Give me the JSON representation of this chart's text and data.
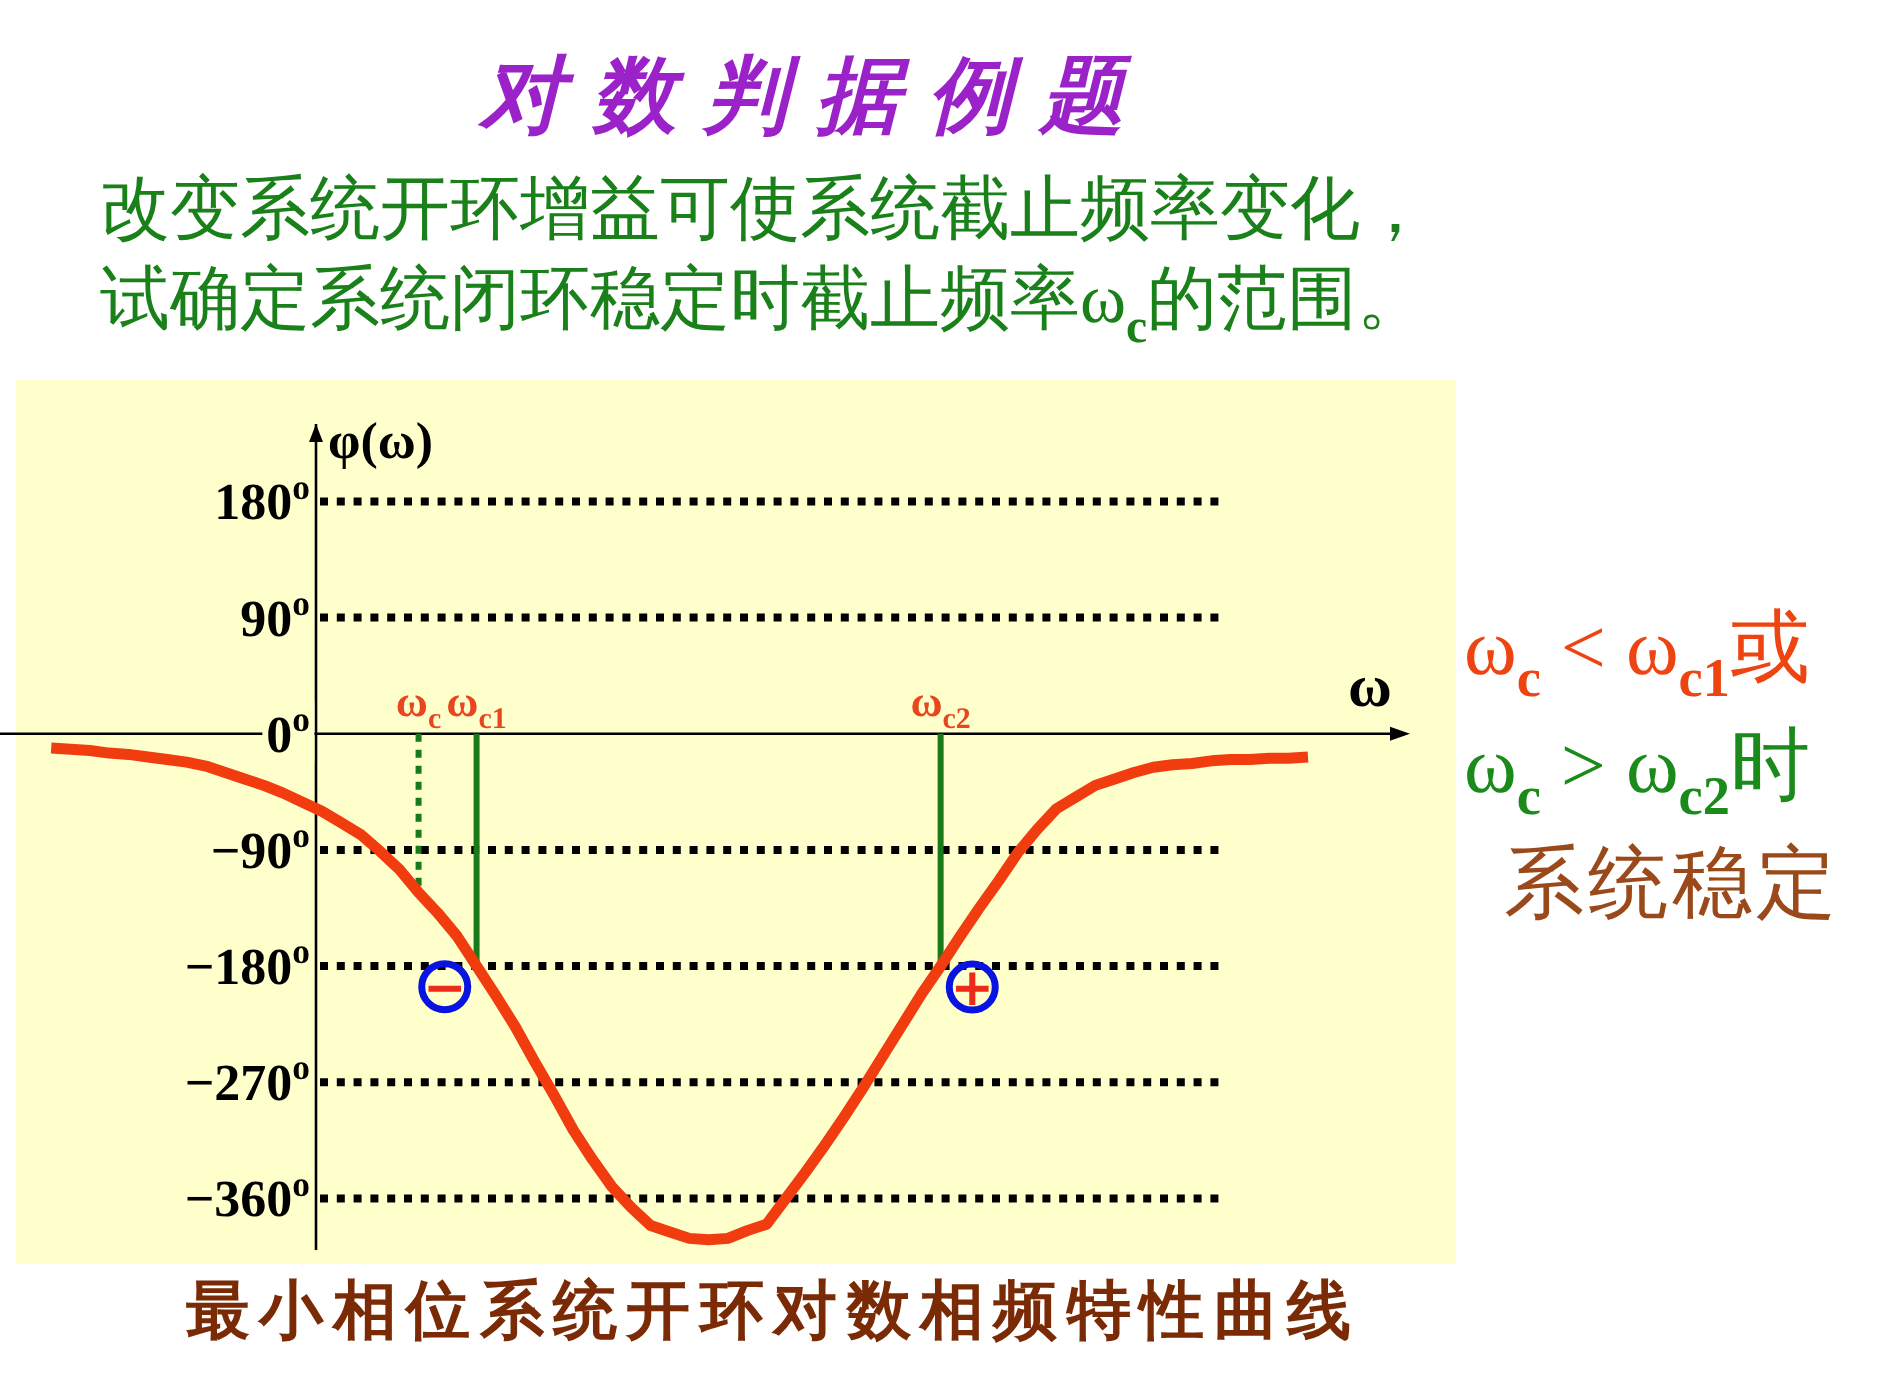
{
  "chart_data": {
    "type": "line",
    "title": "对数判据例题",
    "subtitle": "改变系统开环增益可使系统截止频率变化，试确定系统闭环稳定时截止频率ω$_{c}$的范围。",
    "xlabel": "ω",
    "ylabel": "φ(ω)",
    "categories": [
      null,
      null,
      null,
      null,
      null,
      null,
      null,
      null,
      null,
      null,
      null,
      null,
      null,
      null,
      null,
      null,
      null,
      null,
      null,
      "ω$_{c}$",
      null,
      null,
      "ω$_{c1}$",
      null,
      null,
      null,
      null,
      null,
      null,
      null,
      null,
      null,
      null,
      null,
      null,
      null,
      null,
      null,
      null,
      null,
      null,
      null,
      null,
      null,
      null,
      null,
      "ω$_{c2}$",
      null,
      null,
      null,
      null,
      null,
      null,
      null,
      null,
      null,
      null,
      null,
      null,
      null,
      null,
      null,
      null,
      null,
      null,
      null
    ],
    "series": [
      {
        "color": "#f03c0f",
        "values": [
          -11,
          -12,
          -13,
          -15,
          -16,
          -18,
          -20,
          -22,
          -25,
          -30,
          -35,
          -40,
          -46,
          -53,
          -60,
          -69,
          -78,
          -91,
          -105,
          -123,
          -139,
          -157,
          -180,
          -203,
          -227,
          -254,
          -280,
          -307,
          -330,
          -351,
          -367,
          -381,
          -386,
          -391,
          -392,
          -391,
          -385,
          -380,
          -360,
          -340,
          -319,
          -297,
          -274,
          -250,
          -226,
          -202,
          -180,
          -157,
          -135,
          -114,
          -92,
          -74,
          -58,
          -49,
          -40,
          -35,
          -30,
          -26,
          -24,
          -23,
          -21,
          -20,
          -20,
          -19,
          -19,
          -18
        ]
      }
    ],
    "ylim": [
      -400,
      240
    ],
    "yticks": [
      {
        "value": 180,
        "label": "180$^{o}$"
      },
      {
        "value": 90,
        "label": "90$^{o}$"
      },
      {
        "value": 0,
        "label": "0$^{o}$"
      },
      {
        "value": -90,
        "label": "−90$^{o}$"
      },
      {
        "value": -180,
        "label": "−180$^{o}$"
      },
      {
        "value": -270,
        "label": "−270$^{o}$"
      },
      {
        "value": -360,
        "label": "−360$^{o}$"
      }
    ],
    "grid": "y",
    "line_style": "solid",
    "ref_lines": [
      {
        "axis": "x",
        "value": "ω$_{c}$",
        "color": "#1a7a1a",
        "line_style": "dotted"
      },
      {
        "axis": "x",
        "value": "ω$_{c1}$",
        "color": "#1a7a1a",
        "line_style": "solid"
      },
      {
        "axis": "x",
        "value": "ω$_{c2}$",
        "color": "#1a7a1a",
        "line_style": "solid"
      }
    ],
    "annotations": [
      "ω$_{c}$ < ω$_{c1}$或",
      "ω$_{c}$ > ω$_{c2}$时",
      "系统稳定",
      "最小相位系统开环对数相频特性曲线",
      {
        "text": "−",
        "x": "ω$_{c1}$",
        "y": -180
      },
      {
        "text": "+",
        "x": "ω$_{c2}$",
        "y": -180
      }
    ]
  }
}
